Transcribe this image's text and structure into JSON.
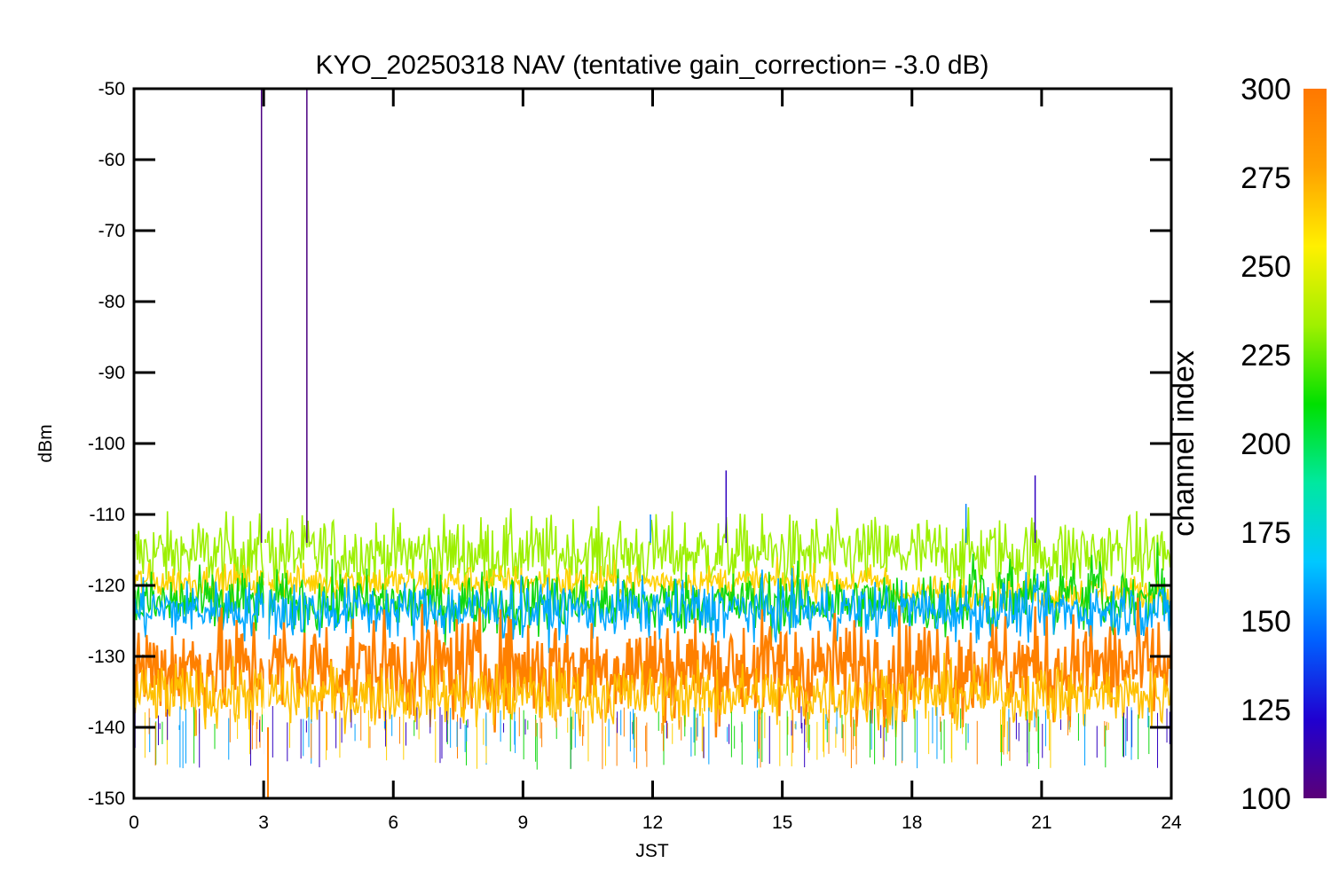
{
  "chart_data": {
    "type": "line",
    "title": "KYO_20250318 NAV (tentative gain_correction= -3.0 dB)",
    "xlabel": "JST",
    "ylabel": "dBm",
    "xlim": [
      0,
      24
    ],
    "ylim": [
      -150,
      -50
    ],
    "x_ticks": [
      0,
      3,
      6,
      9,
      12,
      15,
      18,
      21,
      24
    ],
    "y_ticks": [
      -50,
      -60,
      -70,
      -80,
      -90,
      -100,
      -110,
      -120,
      -130,
      -140,
      -150
    ],
    "grid": false,
    "colorbar": {
      "label": "channel index",
      "range": [
        100,
        300
      ],
      "ticks": [
        300,
        275,
        250,
        225,
        200,
        175,
        150,
        125,
        100
      ],
      "colors": [
        "#5a0078",
        "#2000d0",
        "#0060ff",
        "#00c8ff",
        "#00e8a0",
        "#00e000",
        "#a0f000",
        "#fff000",
        "#ffa000",
        "#ff7800"
      ]
    },
    "bands": [
      {
        "channel": 260,
        "color": "#9cf000",
        "center": -115.5,
        "spread": 2.6
      },
      {
        "channel": 280,
        "color": "#ffd000",
        "center": -119.5,
        "spread": 1.2
      },
      {
        "channel": 230,
        "color": "#10d810",
        "center": -122.5,
        "spread": 2.2
      },
      {
        "channel": 170,
        "color": "#00a8ff",
        "center": -123.5,
        "spread": 2.0
      },
      {
        "channel": 295,
        "color": "#ff8000",
        "center": -131.5,
        "spread": 3.6
      },
      {
        "channel": 285,
        "color": "#ffc000",
        "center": -135.5,
        "spread": 2.2
      }
    ],
    "spikes": [
      {
        "x": 2.95,
        "y_top": -50,
        "color": "#4b0082"
      },
      {
        "x": 4.0,
        "y_top": -50,
        "color": "#4b0082"
      },
      {
        "x": 13.7,
        "y_top": -103.8,
        "color": "#3000c0"
      },
      {
        "x": 20.85,
        "y_top": -104.5,
        "color": "#3000c0"
      },
      {
        "x": 11.95,
        "y_top": -110,
        "color": "#0080ff"
      },
      {
        "x": 19.25,
        "y_top": -108.5,
        "color": "#0080ff"
      }
    ],
    "gap": {
      "x": 3.05,
      "color": "#ffffff"
    }
  }
}
